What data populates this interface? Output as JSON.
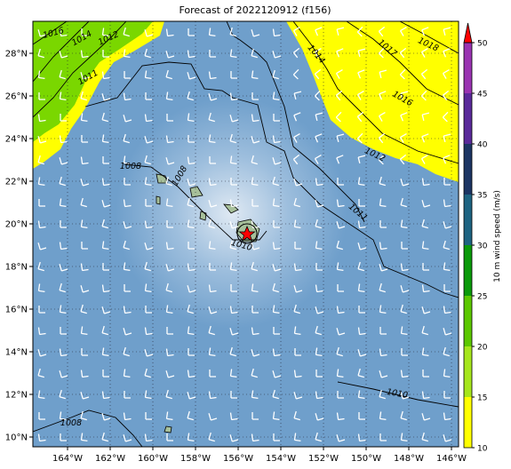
{
  "title": "Forecast of 2022120912 (f156)",
  "xlim": [
    -165.625,
    -145.667
  ],
  "ylim": [
    9.542,
    29.5
  ],
  "xticks": [
    {
      "value": -164,
      "label": "164°W"
    },
    {
      "value": -162,
      "label": "162°W"
    },
    {
      "value": -160,
      "label": "160°W"
    },
    {
      "value": -158,
      "label": "158°W"
    },
    {
      "value": -156,
      "label": "156°W"
    },
    {
      "value": -154,
      "label": "154°W"
    },
    {
      "value": -152,
      "label": "152°W"
    },
    {
      "value": -150,
      "label": "150°W"
    },
    {
      "value": -148,
      "label": "148°W"
    },
    {
      "value": -146,
      "label": "146°W"
    }
  ],
  "yticks": [
    {
      "value": 10,
      "label": "10°N"
    },
    {
      "value": 12,
      "label": "12°N"
    },
    {
      "value": 14,
      "label": "14°N"
    },
    {
      "value": 16,
      "label": "16°N"
    },
    {
      "value": 18,
      "label": "18°N"
    },
    {
      "value": 20,
      "label": "20°N"
    },
    {
      "value": 22,
      "label": "22°N"
    },
    {
      "value": 24,
      "label": "24°N"
    },
    {
      "value": 26,
      "label": "26°N"
    },
    {
      "value": 28,
      "label": "28°N"
    }
  ],
  "colorbar": {
    "label": "10 m wind speed (m/s)",
    "lim": [
      10,
      50
    ],
    "ticks": [
      10,
      15,
      20,
      25,
      30,
      35,
      40,
      45,
      50
    ],
    "colors": [
      "#ffff00",
      "#a6e61c",
      "#5cc800",
      "#0a9a0a",
      "#1e6482",
      "#1c3563",
      "#5a2a9a",
      "#9a34b2"
    ],
    "extend_color": "#ff0000"
  },
  "isobar_labels": [
    "1016",
    "1014",
    "1012",
    "1011",
    "1008",
    "1008",
    "1010",
    "1011",
    "1012",
    "1014",
    "1017",
    "1018",
    "1016",
    "1010",
    "1008"
  ]
}
